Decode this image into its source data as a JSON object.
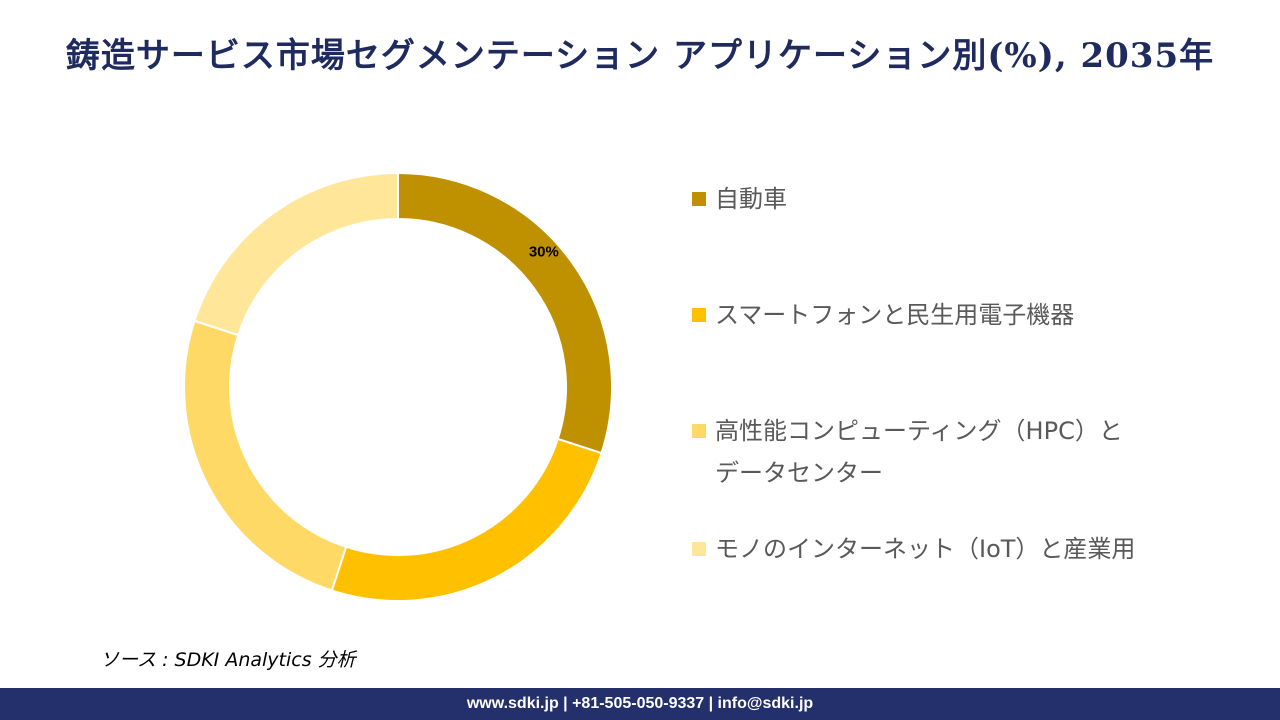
{
  "title": "鋳造サービス市場セグメンテーション アプリケーション別(%), 2035年",
  "chart_data": {
    "type": "pie",
    "style": "donut",
    "title": "鋳造サービス市場セグメンテーション アプリケーション別(%), 2035年",
    "categories": [
      "自動車",
      "スマートフォンと民生用電子機器",
      "高性能コンピューティング（HPC）とデータセンター",
      "モノのインターネット（IoT）と産業用"
    ],
    "values": [
      30,
      25,
      25,
      20
    ],
    "data_labels": [
      "30%",
      "",
      "",
      ""
    ],
    "colors": [
      "#BF9000",
      "#FFC000",
      "#FFD966",
      "#FFE699"
    ],
    "legend_position": "right"
  },
  "legend": [
    {
      "line1": "自動車",
      "line2": ""
    },
    {
      "line1": "スマートフォンと民生用電子機器",
      "line2": ""
    },
    {
      "line1": "高性能コンピューティング（HPC）と",
      "line2": "データセンター"
    },
    {
      "line1": "モノのインターネット（IoT）と産業用",
      "line2": ""
    }
  ],
  "source": "ソース : SDKI Analytics 分析",
  "footer": "www.sdki.jp | +81-505-050-9337 | info@sdki.jp"
}
